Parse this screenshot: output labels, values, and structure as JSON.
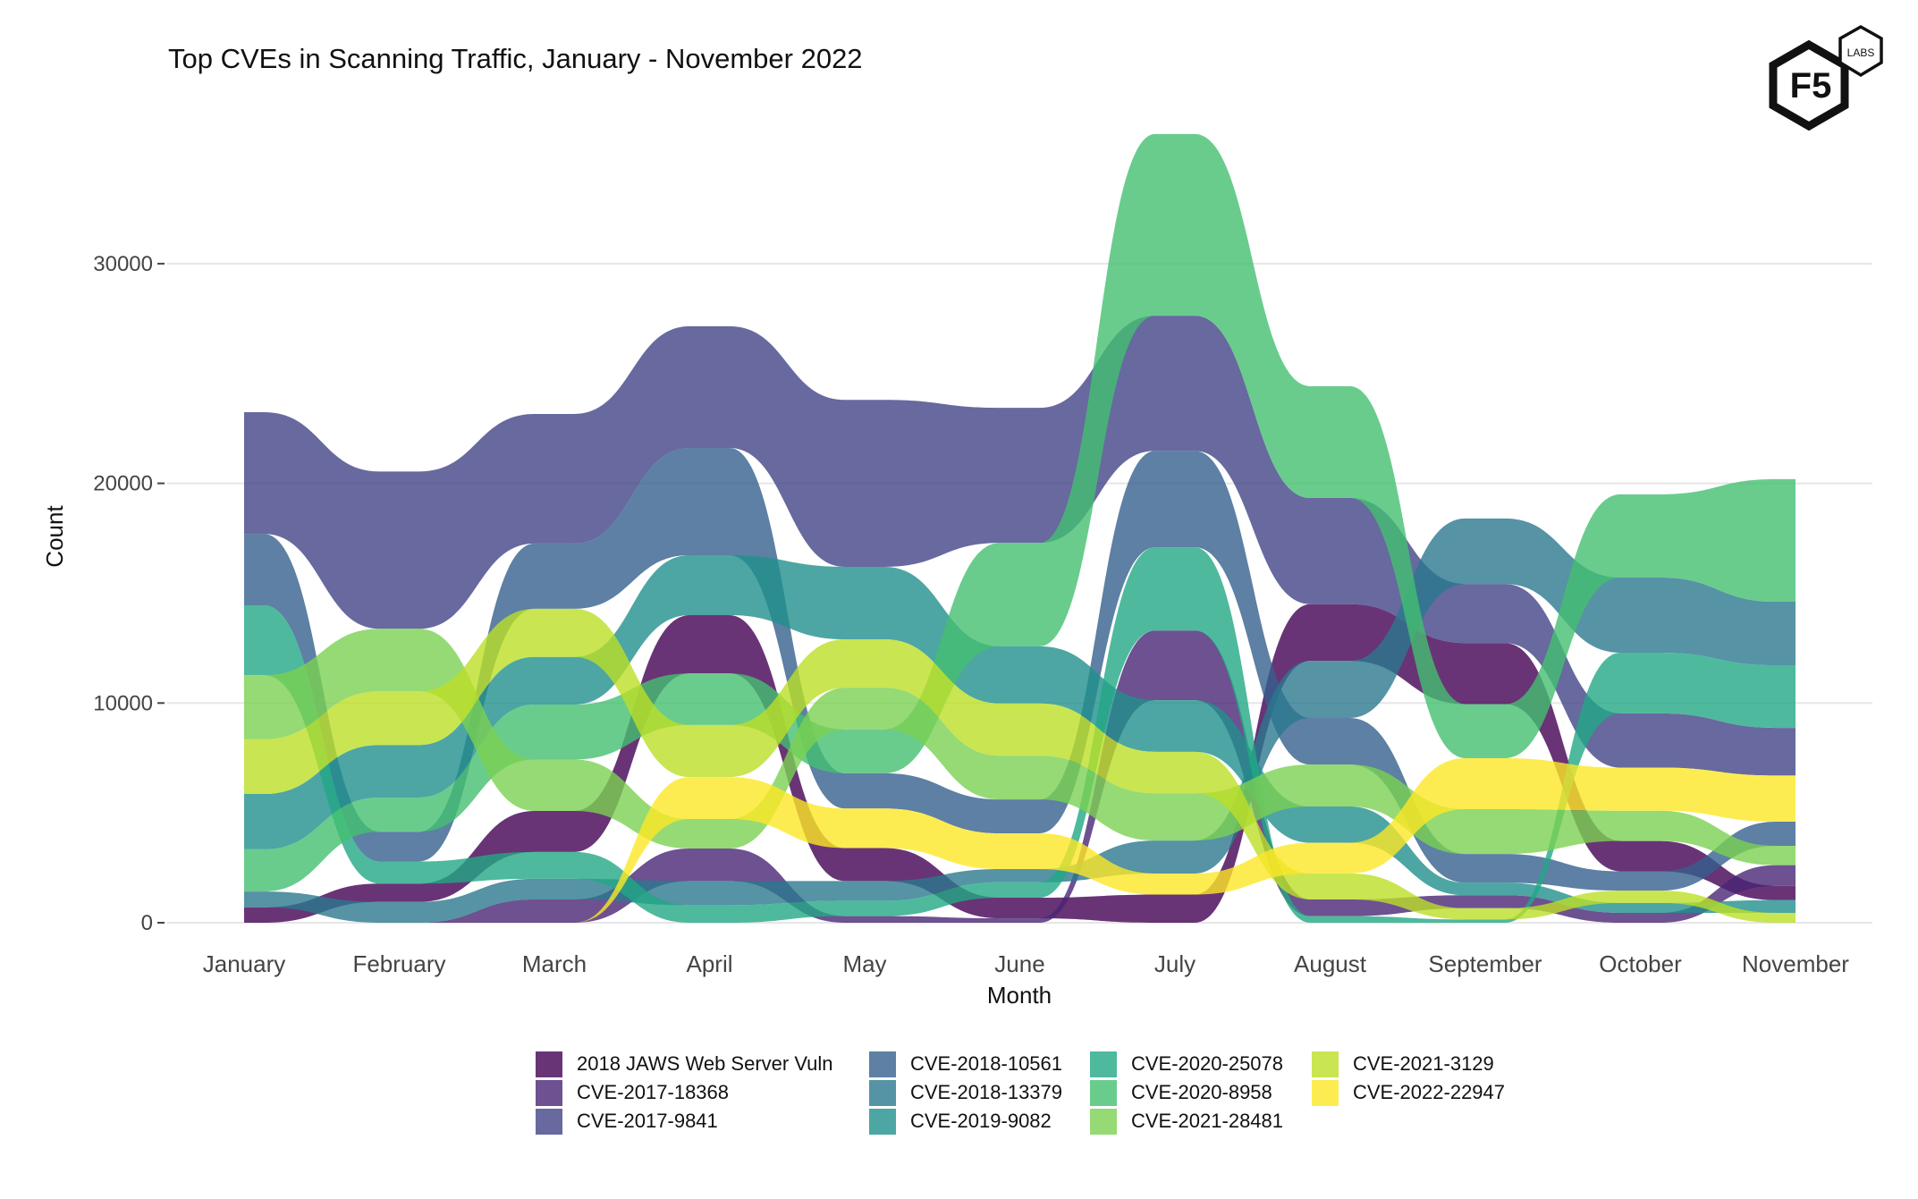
{
  "logo": {
    "main_text": "F5",
    "badge_text": "LABS"
  },
  "chart_data": {
    "type": "area",
    "subtype": "alluvial",
    "title": "Top CVEs in Scanning Traffic, January - November 2022",
    "xlabel": "Month",
    "ylabel": "Count",
    "ylim": [
      0,
      36000
    ],
    "yticks": [
      0,
      10000,
      20000,
      30000
    ],
    "ytick_labels": [
      "0",
      "10000",
      "20000",
      "30000"
    ],
    "grid": true,
    "legend_position": "bottom",
    "categories": [
      "January",
      "February",
      "March",
      "April",
      "May",
      "June",
      "July",
      "August",
      "September",
      "October",
      "November"
    ],
    "series": [
      {
        "name": "2018 JAWS Web Server Vuln",
        "color": "#440154",
        "values": [
          700,
          830,
          1870,
          2650,
          1500,
          940,
          1280,
          2580,
          2780,
          1380,
          650
        ]
      },
      {
        "name": "CVE-2017-18368",
        "color": "#482576",
        "values": [
          0,
          0,
          1060,
          1480,
          300,
          200,
          3170,
          760,
          590,
          450,
          940
        ]
      },
      {
        "name": "CVE-2017-9841",
        "color": "#414487",
        "values": [
          5540,
          7160,
          5900,
          5540,
          7600,
          6150,
          6150,
          4830,
          2690,
          2470,
          2170
        ]
      },
      {
        "name": "CVE-2018-10561",
        "color": "#35608D",
        "values": [
          3250,
          1350,
          2970,
          4880,
          1600,
          1540,
          4390,
          2120,
          1310,
          880,
          1100
        ]
      },
      {
        "name": "CVE-2018-13379",
        "color": "#2A788E",
        "values": [
          720,
          950,
          940,
          1100,
          900,
          600,
          1500,
          2600,
          2980,
          3420,
          2890
        ]
      },
      {
        "name": "CVE-2019-9082",
        "color": "#21908C",
        "values": [
          2520,
          2390,
          2170,
          2730,
          3300,
          2600,
          2350,
          1650,
          570,
          450,
          580
        ]
      },
      {
        "name": "CVE-2020-25078",
        "color": "#22A884",
        "values": [
          3180,
          1010,
          1220,
          800,
          700,
          700,
          3790,
          300,
          150,
          2760,
          2850
        ]
      },
      {
        "name": "CVE-2020-8958",
        "color": "#43BF71",
        "values": [
          1920,
          1560,
          2500,
          2350,
          2000,
          4710,
          8270,
          5090,
          2460,
          3790,
          5580
        ]
      },
      {
        "name": "CVE-2021-28481",
        "color": "#7AD151",
        "values": [
          2920,
          2850,
          2340,
          1340,
          1900,
          1990,
          2150,
          1910,
          2040,
          1380,
          880
        ]
      },
      {
        "name": "CVE-2021-3129",
        "color": "#BBDF27",
        "values": [
          2490,
          2440,
          2190,
          2370,
          2200,
          2380,
          1890,
          1180,
          510,
          560,
          450
        ]
      },
      {
        "name": "CVE-2022-22947",
        "color": "#FDE725",
        "values": [
          0,
          0,
          0,
          1910,
          1800,
          1630,
          960,
          1400,
          2320,
          1960,
          2100
        ]
      }
    ],
    "stack_order_bottom_to_top": [
      [
        "2018 JAWS Web Server Vuln",
        "CVE-2018-13379",
        "CVE-2020-8958",
        "CVE-2019-9082",
        "CVE-2021-3129",
        "CVE-2021-28481",
        "CVE-2020-25078",
        "CVE-2018-10561",
        "CVE-2017-9841",
        "CVE-2017-18368",
        "CVE-2022-22947"
      ],
      [
        "CVE-2017-18368",
        "CVE-2022-22947",
        "CVE-2018-13379",
        "2018 JAWS Web Server Vuln",
        "CVE-2020-25078",
        "CVE-2018-10561",
        "CVE-2020-8958",
        "CVE-2019-9082",
        "CVE-2021-3129",
        "CVE-2021-28481",
        "CVE-2017-9841"
      ],
      [
        "CVE-2022-22947",
        "CVE-2017-18368",
        "CVE-2018-13379",
        "CVE-2020-25078",
        "2018 JAWS Web Server Vuln",
        "CVE-2021-28481",
        "CVE-2020-8958",
        "CVE-2019-9082",
        "CVE-2021-3129",
        "CVE-2018-10561",
        "CVE-2017-9841"
      ],
      [
        "CVE-2020-25078",
        "CVE-2018-13379",
        "CVE-2017-18368",
        "CVE-2021-28481",
        "CVE-2022-22947",
        "CVE-2021-3129",
        "CVE-2020-8958",
        "2018 JAWS Web Server Vuln",
        "CVE-2019-9082",
        "CVE-2018-10561",
        "CVE-2017-9841"
      ],
      [
        "CVE-2017-18368",
        "CVE-2020-25078",
        "CVE-2018-13379",
        "2018 JAWS Web Server Vuln",
        "CVE-2022-22947",
        "CVE-2018-10561",
        "CVE-2020-8958",
        "CVE-2021-28481",
        "CVE-2021-3129",
        "CVE-2019-9082",
        "CVE-2017-9841"
      ],
      [
        "CVE-2017-18368",
        "2018 JAWS Web Server Vuln",
        "CVE-2020-25078",
        "CVE-2018-13379",
        "CVE-2022-22947",
        "CVE-2018-10561",
        "CVE-2021-28481",
        "CVE-2021-3129",
        "CVE-2019-9082",
        "CVE-2020-8958",
        "CVE-2017-9841"
      ],
      [
        "2018 JAWS Web Server Vuln",
        "CVE-2022-22947",
        "CVE-2018-13379",
        "CVE-2021-28481",
        "CVE-2021-3129",
        "CVE-2019-9082",
        "CVE-2017-18368",
        "CVE-2020-25078",
        "CVE-2018-10561",
        "CVE-2017-9841",
        "CVE-2020-8958"
      ],
      [
        "CVE-2020-25078",
        "CVE-2017-18368",
        "CVE-2021-3129",
        "CVE-2022-22947",
        "CVE-2019-9082",
        "CVE-2021-28481",
        "CVE-2018-10561",
        "CVE-2018-13379",
        "2018 JAWS Web Server Vuln",
        "CVE-2017-9841",
        "CVE-2020-8958"
      ],
      [
        "CVE-2020-25078",
        "CVE-2021-3129",
        "CVE-2017-18368",
        "CVE-2019-9082",
        "CVE-2018-10561",
        "CVE-2021-28481",
        "CVE-2022-22947",
        "CVE-2020-8958",
        "2018 JAWS Web Server Vuln",
        "CVE-2017-9841",
        "CVE-2018-13379"
      ],
      [
        "CVE-2017-18368",
        "CVE-2019-9082",
        "CVE-2021-3129",
        "CVE-2018-10561",
        "2018 JAWS Web Server Vuln",
        "CVE-2021-28481",
        "CVE-2022-22947",
        "CVE-2017-9841",
        "CVE-2020-25078",
        "CVE-2018-13379",
        "CVE-2020-8958"
      ],
      [
        "CVE-2021-3129",
        "CVE-2019-9082",
        "2018 JAWS Web Server Vuln",
        "CVE-2017-18368",
        "CVE-2021-28481",
        "CVE-2018-10561",
        "CVE-2022-22947",
        "CVE-2017-9841",
        "CVE-2020-25078",
        "CVE-2018-13379",
        "CVE-2020-8958"
      ]
    ],
    "legend": {
      "columns": [
        [
          "2018 JAWS Web Server Vuln",
          "CVE-2017-18368",
          "CVE-2017-9841"
        ],
        [
          "CVE-2018-10561",
          "CVE-2018-13379",
          "CVE-2019-9082"
        ],
        [
          "CVE-2020-25078",
          "CVE-2020-8958",
          "CVE-2021-28481"
        ],
        [
          "CVE-2021-3129",
          "CVE-2022-22947"
        ]
      ]
    }
  }
}
